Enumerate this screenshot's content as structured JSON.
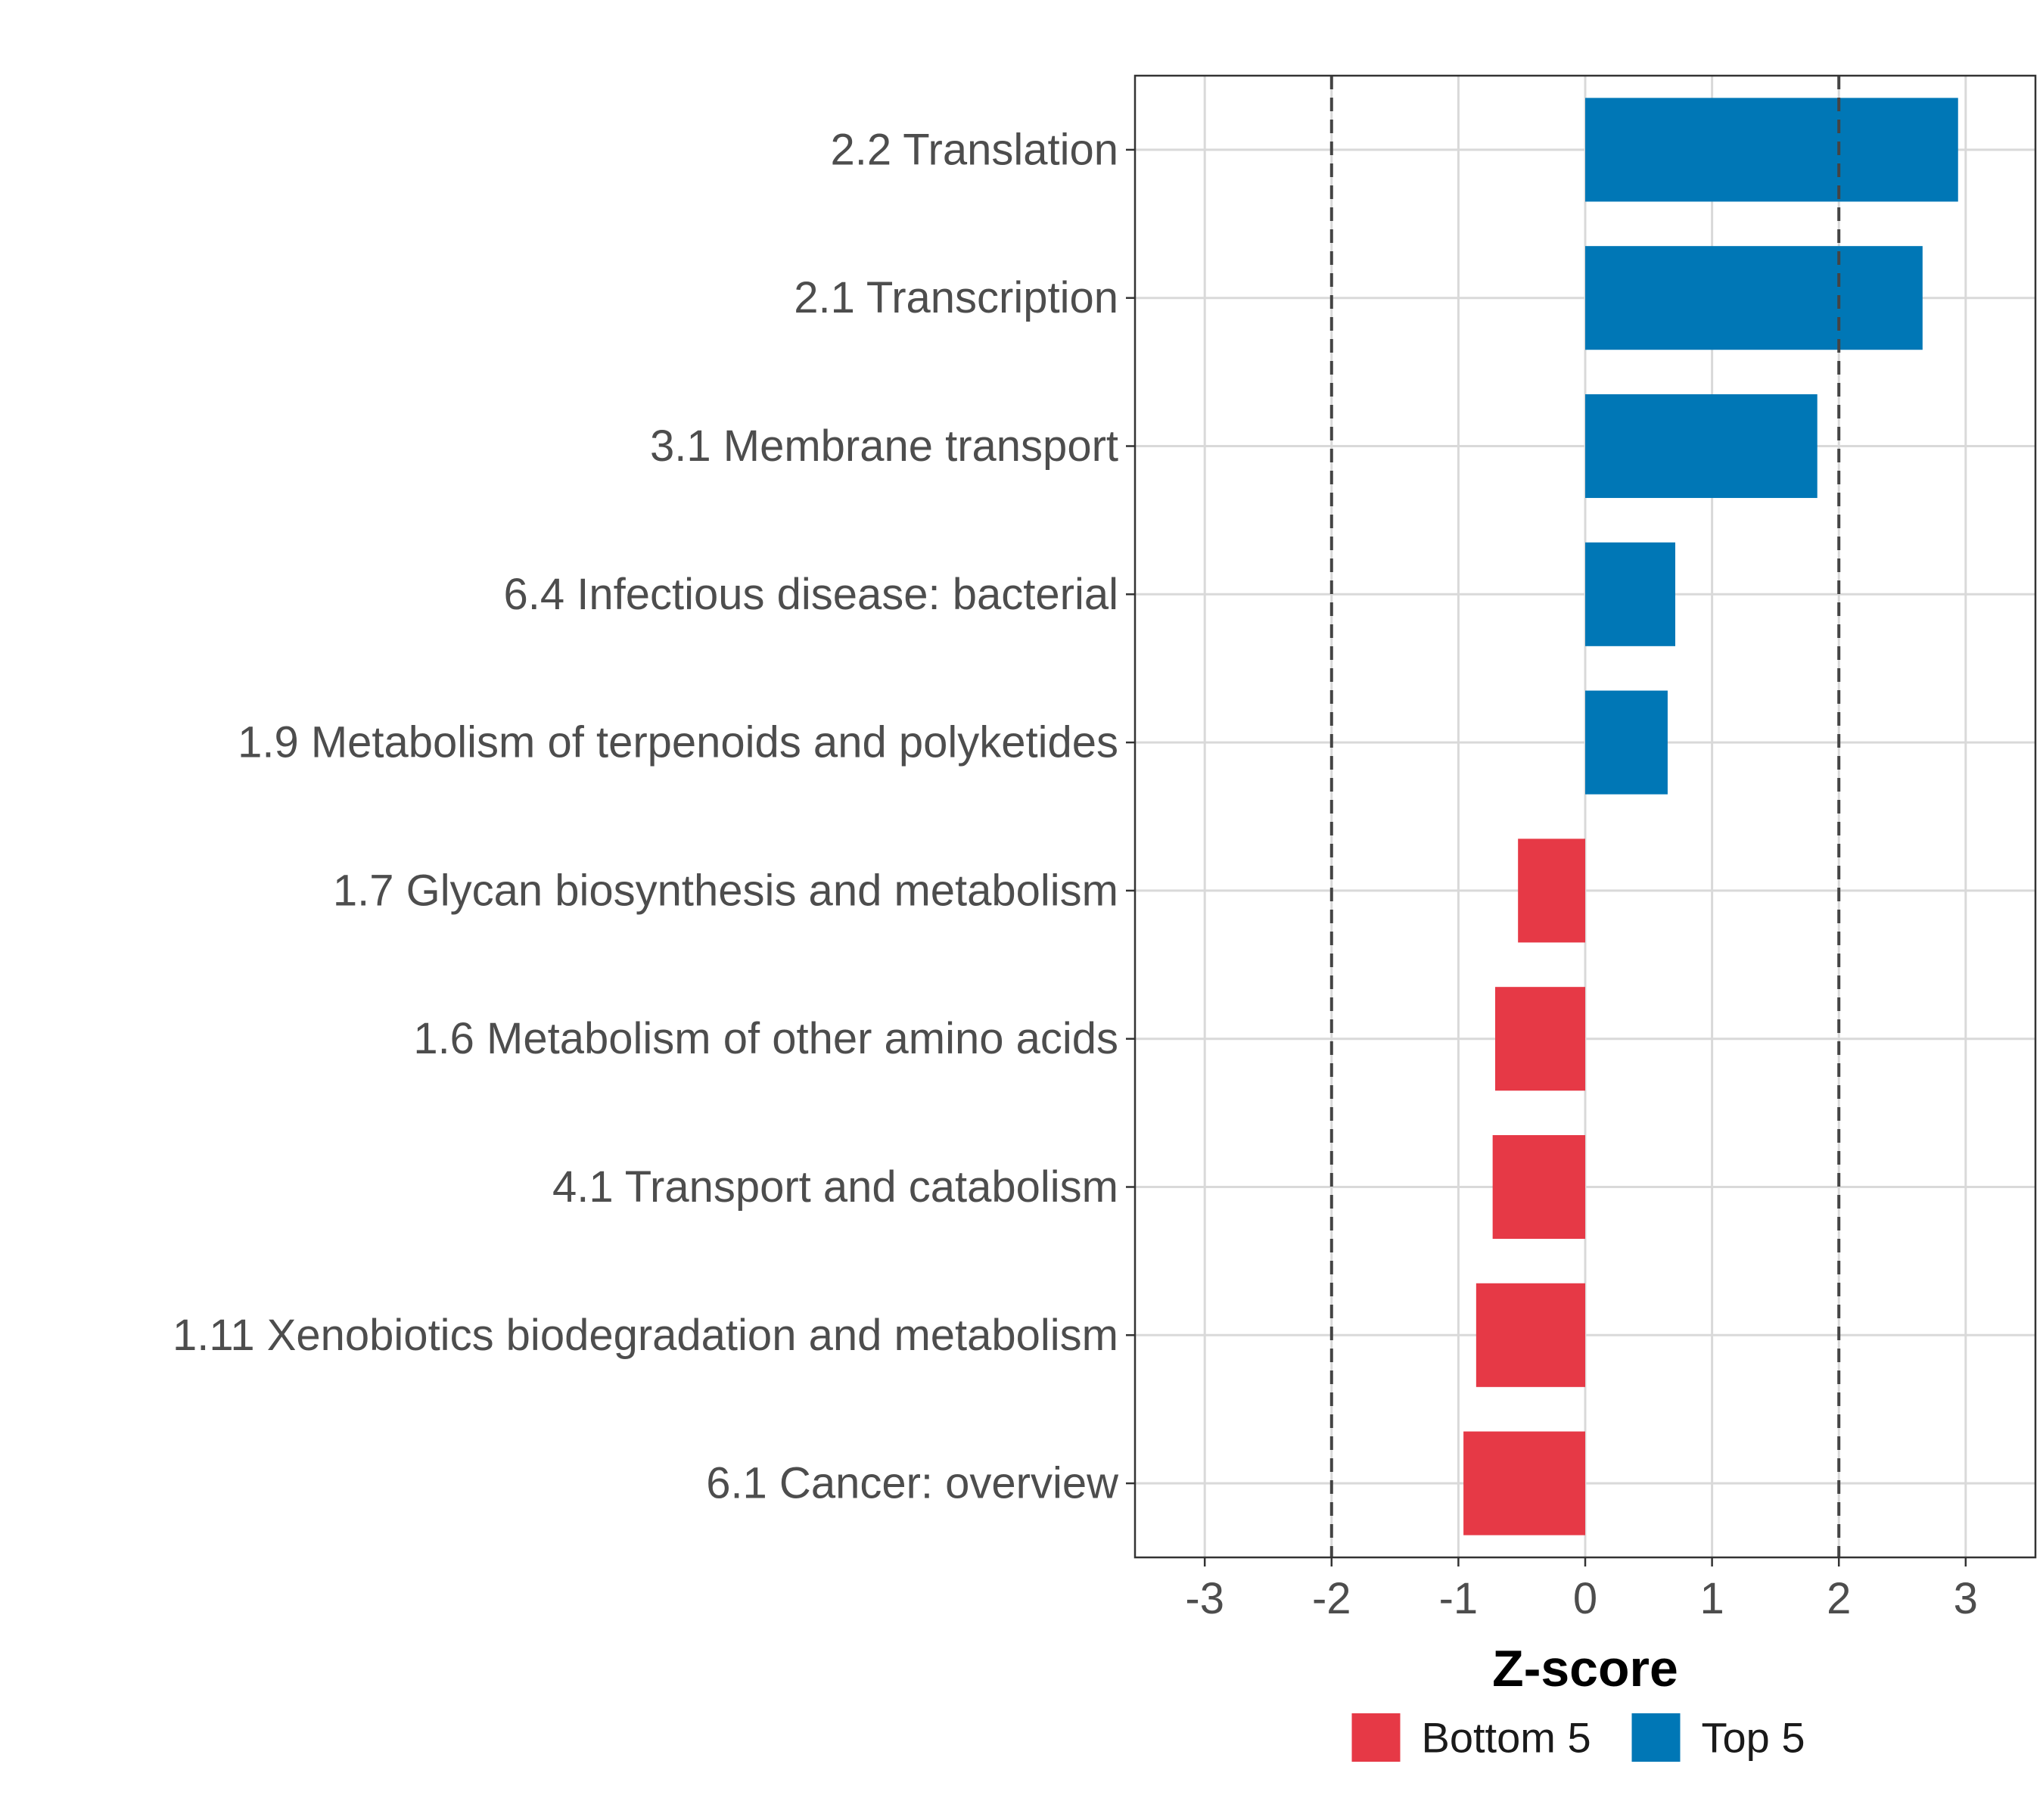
{
  "chart_data": {
    "type": "bar",
    "orientation": "horizontal",
    "title": "",
    "xlabel": "Z-score",
    "ylabel": "",
    "xlim": [
      -3.55,
      3.55
    ],
    "xticks": [
      -3,
      -2,
      -1,
      0,
      1,
      2,
      3
    ],
    "xtick_labels": [
      "-3",
      "-2",
      "-1",
      "0",
      "1",
      "2",
      "3"
    ],
    "reference_lines": [
      -2,
      2
    ],
    "grid": true,
    "legend_position": "bottom",
    "categories": [
      "2.2 Translation",
      "2.1 Transcription",
      "3.1 Membrane transport",
      "6.4 Infectious disease: bacterial",
      "1.9 Metabolism of terpenoids and polyketides",
      "1.7 Glycan biosynthesis and metabolism",
      "1.6 Metabolism of other amino acids",
      "4.1 Transport and catabolism",
      "1.11 Xenobiotics biodegradation and metabolism",
      "6.1 Cancer: overview"
    ],
    "values": [
      2.94,
      2.66,
      1.83,
      0.71,
      0.65,
      -0.53,
      -0.71,
      -0.73,
      -0.86,
      -0.96
    ],
    "groups": [
      "Top 5",
      "Top 5",
      "Top 5",
      "Top 5",
      "Top 5",
      "Bottom 5",
      "Bottom 5",
      "Bottom 5",
      "Bottom 5",
      "Bottom 5"
    ],
    "legend": [
      {
        "name": "Bottom 5",
        "color": "#e63946"
      },
      {
        "name": "Top 5",
        "color": "#0077b6"
      }
    ]
  }
}
